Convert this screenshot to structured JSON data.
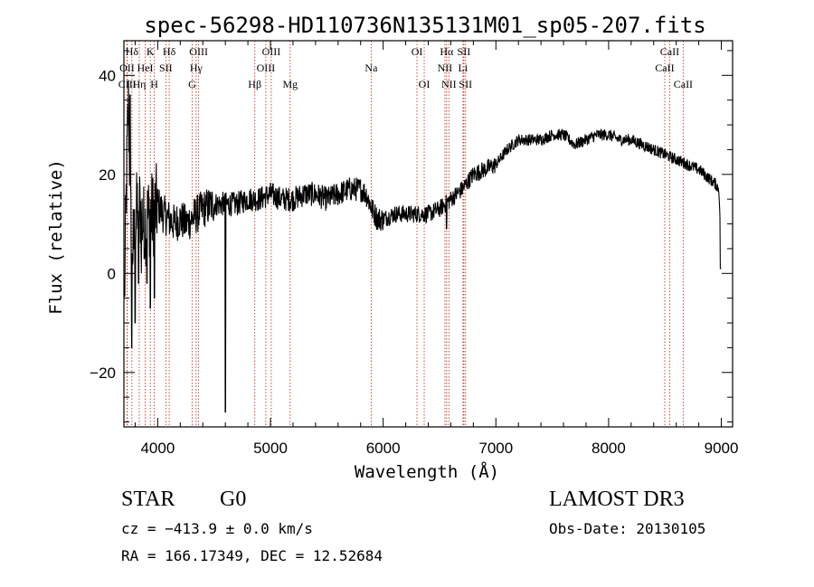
{
  "chart_data": {
    "type": "line",
    "title": "spec-56298-HD110736N135131M01_sp05-207.fits",
    "xlabel": "Wavelength (Å)",
    "ylabel": "Flux (relative)",
    "xlim": [
      3700,
      9100
    ],
    "ylim": [
      -31,
      47
    ],
    "xticks": [
      4000,
      5000,
      6000,
      7000,
      8000,
      9000
    ],
    "yticks": [
      -20,
      0,
      20,
      40
    ],
    "grid": false,
    "series": [
      {
        "name": "flux",
        "x": [
          3700,
          3720,
          3740,
          3760,
          3780,
          3800,
          3820,
          3850,
          3880,
          3900,
          3930,
          3960,
          4000,
          4050,
          4100,
          4150,
          4200,
          4250,
          4300,
          4350,
          4400,
          4500,
          4600,
          4700,
          4800,
          4900,
          5000,
          5100,
          5200,
          5300,
          5400,
          5500,
          5600,
          5700,
          5800,
          5850,
          5900,
          5950,
          6000,
          6100,
          6200,
          6300,
          6400,
          6500,
          6550,
          6600,
          6650,
          6700,
          6800,
          6900,
          7000,
          7100,
          7200,
          7300,
          7400,
          7500,
          7600,
          7700,
          7800,
          7900,
          8000,
          8100,
          8200,
          8300,
          8400,
          8500,
          8600,
          8700,
          8800,
          8900,
          8950,
          8980,
          9000
        ],
        "y": [
          -12,
          15,
          35,
          10,
          5,
          8,
          14,
          13,
          9,
          11,
          12,
          12,
          14,
          12,
          11,
          10,
          11,
          10,
          11,
          12,
          13,
          14,
          14,
          14,
          15,
          15,
          16,
          15,
          15,
          16,
          16,
          15,
          16,
          17,
          17,
          16,
          13,
          11,
          11,
          12,
          12,
          12,
          12,
          13,
          14,
          15,
          16,
          17,
          20,
          21,
          22,
          25,
          27,
          27,
          27,
          28,
          28,
          26,
          27,
          28,
          28,
          27,
          27,
          26,
          25,
          24,
          23,
          22,
          21,
          19,
          18,
          17,
          1
        ],
        "features": [
          {
            "x": 3755,
            "y": 36
          },
          {
            "x": 3770,
            "y": -15
          },
          {
            "x": 3800,
            "y": -10
          },
          {
            "x": 3830,
            "y": -2
          },
          {
            "x": 3855,
            "y": 0
          },
          {
            "x": 3880,
            "y": 3
          },
          {
            "x": 3905,
            "y": -2
          },
          {
            "x": 3935,
            "y": -7
          },
          {
            "x": 3970,
            "y": -5
          },
          {
            "x": 4600,
            "y": -28
          },
          {
            "x": 6563,
            "y": 9
          }
        ]
      }
    ],
    "lines": [
      {
        "label": "Hδ",
        "x": 3771,
        "row": 1
      },
      {
        "label": "OII",
        "x": 3728,
        "row": 2
      },
      {
        "label": "CIII",
        "x": 3730,
        "row": 3
      },
      {
        "label": "K",
        "x": 3934,
        "row": 1
      },
      {
        "label": "HeI",
        "x": 3889,
        "row": 2
      },
      {
        "label": "Hη",
        "x": 3836,
        "row": 3
      },
      {
        "label": "Hδ",
        "x": 4102,
        "row": 1
      },
      {
        "label": "SII",
        "x": 4072,
        "row": 2
      },
      {
        "label": "H",
        "x": 3969,
        "row": 3
      },
      {
        "label": "OIII",
        "x": 4363,
        "row": 1
      },
      {
        "label": "Hγ",
        "x": 4341,
        "row": 2
      },
      {
        "label": "G",
        "x": 4305,
        "row": 3
      },
      {
        "label": "Hβ",
        "x": 4861,
        "row": 3
      },
      {
        "label": "OIII",
        "x": 5007,
        "row": 1
      },
      {
        "label": "OIII",
        "x": 4959,
        "row": 2
      },
      {
        "label": "Mg",
        "x": 5175,
        "row": 3
      },
      {
        "label": "Na",
        "x": 5894,
        "row": 2
      },
      {
        "label": "OI",
        "x": 6300,
        "row": 1
      },
      {
        "label": "OI",
        "x": 6364,
        "row": 3
      },
      {
        "label": "Hα",
        "x": 6563,
        "row": 1
      },
      {
        "label": "NII",
        "x": 6548,
        "row": 2
      },
      {
        "label": "NII",
        "x": 6583,
        "row": 3
      },
      {
        "label": "SII",
        "x": 6716,
        "row": 1
      },
      {
        "label": "Li",
        "x": 6708,
        "row": 2
      },
      {
        "label": "SII",
        "x": 6731,
        "row": 3
      },
      {
        "label": "CaII",
        "x": 8542,
        "row": 1
      },
      {
        "label": "CaII",
        "x": 8498,
        "row": 2
      },
      {
        "label": "CaII",
        "x": 8662,
        "row": 3
      }
    ]
  },
  "info": {
    "class": "STAR",
    "subclass": "G0",
    "survey": "LAMOST DR3",
    "cz": "cz = −413.9 ± 0.0 km/s",
    "obs_date": "Obs-Date: 20130105",
    "coords": "RA = 166.17349, DEC =  12.52684"
  }
}
